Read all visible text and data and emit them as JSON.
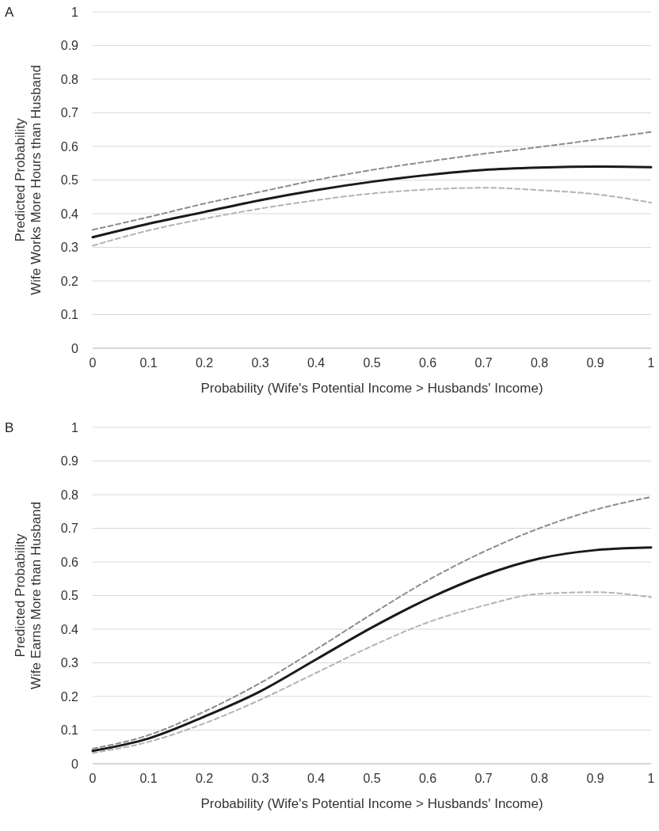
{
  "chart_data": [
    {
      "type": "line",
      "title": "A",
      "xlabel": "Probability (Wife's Potential Income > Husbands' Income)",
      "ylabel": "Predicted Probability\nWife Works More Hours than Husband",
      "x": [
        0,
        0.1,
        0.2,
        0.3,
        0.4,
        0.5,
        0.6,
        0.7,
        0.8,
        0.9,
        1
      ],
      "xlim": [
        0,
        1
      ],
      "xticks": [
        0,
        0.1,
        0.2,
        0.3,
        0.4,
        0.5,
        0.6,
        0.7,
        0.8,
        0.9,
        1
      ],
      "ylim": [
        0,
        1
      ],
      "yticks": [
        0,
        0.1,
        0.2,
        0.3,
        0.4,
        0.5,
        0.6,
        0.7,
        0.8,
        0.9,
        1
      ],
      "grid": "y",
      "marker": "none",
      "series": [
        {
          "color": "#8c8c8c",
          "line_style": "dashed",
          "values": [
            0.352,
            0.39,
            0.43,
            0.465,
            0.5,
            0.53,
            0.555,
            0.578,
            0.598,
            0.62,
            0.643
          ]
        },
        {
          "color": "#1a1a1a",
          "line_style": "solid",
          "values": [
            0.33,
            0.37,
            0.405,
            0.44,
            0.47,
            0.495,
            0.515,
            0.53,
            0.537,
            0.54,
            0.538
          ]
        },
        {
          "color": "#b3b3b3",
          "line_style": "dashed",
          "values": [
            0.305,
            0.35,
            0.385,
            0.415,
            0.44,
            0.46,
            0.472,
            0.477,
            0.47,
            0.458,
            0.433
          ]
        }
      ]
    },
    {
      "type": "line",
      "title": "B",
      "xlabel": "Probability (Wife's Potential Income > Husbands' Income)",
      "ylabel": "Predicted Probability\nWife Earns More than Husband",
      "x": [
        0,
        0.1,
        0.2,
        0.3,
        0.4,
        0.5,
        0.6,
        0.7,
        0.8,
        0.9,
        1
      ],
      "xlim": [
        0,
        1
      ],
      "xticks": [
        0,
        0.1,
        0.2,
        0.3,
        0.4,
        0.5,
        0.6,
        0.7,
        0.8,
        0.9,
        1
      ],
      "ylim": [
        0,
        1
      ],
      "yticks": [
        0,
        0.1,
        0.2,
        0.3,
        0.4,
        0.5,
        0.6,
        0.7,
        0.8,
        0.9,
        1
      ],
      "grid": "y",
      "marker": "none",
      "series": [
        {
          "color": "#8c8c8c",
          "line_style": "dashed",
          "values": [
            0.045,
            0.085,
            0.155,
            0.24,
            0.34,
            0.445,
            0.545,
            0.63,
            0.7,
            0.755,
            0.793
          ]
        },
        {
          "color": "#1a1a1a",
          "line_style": "solid",
          "values": [
            0.038,
            0.075,
            0.14,
            0.215,
            0.31,
            0.405,
            0.49,
            0.56,
            0.61,
            0.635,
            0.643
          ]
        },
        {
          "color": "#b3b3b3",
          "line_style": "dashed",
          "values": [
            0.032,
            0.065,
            0.12,
            0.19,
            0.27,
            0.35,
            0.42,
            0.47,
            0.505,
            0.51,
            0.495
          ]
        }
      ]
    }
  ]
}
